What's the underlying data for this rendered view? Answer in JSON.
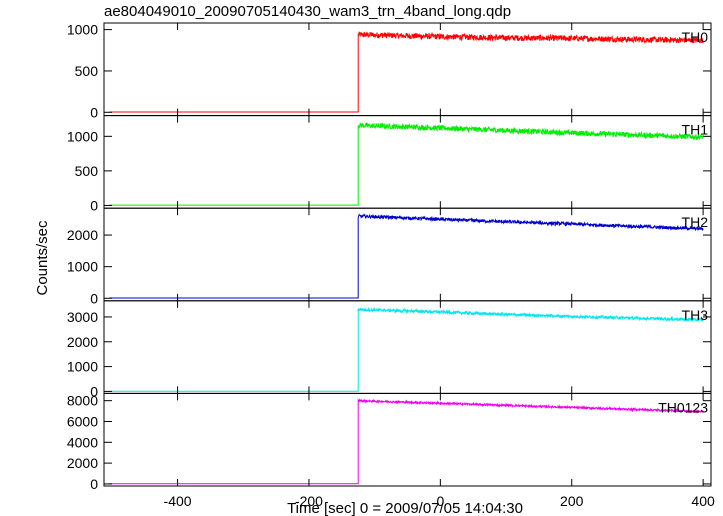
{
  "chart_data": {
    "type": "line",
    "title": "ae804049010_20090705140430_wam3_trn_4band_long.qdp",
    "xlabel": "Time [sec] 0 = 2009/07/05 14:04:30",
    "ylabel": "Counts/sec",
    "xlim": [
      -512,
      412
    ],
    "x_ticks": [
      -400,
      -200,
      0,
      200,
      400
    ],
    "grid": false,
    "onset_x": -125,
    "panels": [
      {
        "name": "TH0",
        "color": "#ff0000",
        "ylim": [
          -40,
          1080
        ],
        "y_ticks": [
          0,
          500,
          1000
        ],
        "x": [
          -125,
          0,
          100,
          200,
          300,
          400
        ],
        "values_before": 3,
        "values": [
          940,
          915,
          900,
          895,
          880,
          870
        ],
        "noise": 35
      },
      {
        "name": "TH1",
        "color": "#00ee00",
        "ylim": [
          -40,
          1300
        ],
        "y_ticks": [
          0,
          500,
          1000
        ],
        "x": [
          -125,
          0,
          100,
          200,
          300,
          400
        ],
        "values_before": 5,
        "values": [
          1160,
          1120,
          1085,
          1050,
          1020,
          990
        ],
        "noise": 38
      },
      {
        "name": "TH2",
        "color": "#0000cc",
        "ylim": [
          -80,
          2850
        ],
        "y_ticks": [
          0,
          1000,
          2000
        ],
        "x": [
          -125,
          0,
          100,
          200,
          300,
          400
        ],
        "values_before": 10,
        "values": [
          2600,
          2500,
          2420,
          2350,
          2270,
          2200
        ],
        "noise": 50
      },
      {
        "name": "TH3",
        "color": "#00e5ee",
        "ylim": [
          -80,
          3650
        ],
        "y_ticks": [
          0,
          1000,
          2000,
          3000
        ],
        "x": [
          -125,
          0,
          100,
          200,
          300,
          400
        ],
        "values_before": 10,
        "values": [
          3300,
          3200,
          3100,
          3020,
          2950,
          2880
        ],
        "noise": 55
      },
      {
        "name": "TH0123",
        "color": "#ee00ee",
        "ylim": [
          -200,
          8700
        ],
        "y_ticks": [
          0,
          2000,
          4000,
          6000,
          8000
        ],
        "x": [
          -125,
          0,
          100,
          200,
          300,
          400
        ],
        "values_before": 20,
        "values": [
          8000,
          7750,
          7550,
          7350,
          7150,
          6950
        ],
        "noise": 90
      }
    ]
  }
}
